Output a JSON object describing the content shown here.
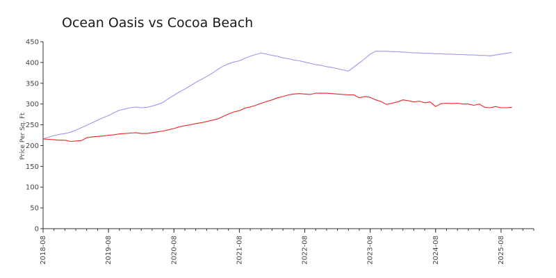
{
  "chart_data": {
    "type": "line",
    "title": "Ocean Oasis vs Cocoa Beach",
    "xlabel": "",
    "ylabel": "Price Per Sq. Ft",
    "ylim": [
      0,
      450
    ],
    "yticks": [
      0,
      50,
      100,
      150,
      200,
      250,
      300,
      350,
      400,
      450
    ],
    "xlim": [
      "2018-08",
      "2026-02"
    ],
    "xticks": [
      "2018-08",
      "2019-08",
      "2020-08",
      "2021-08",
      "2022-08",
      "2023-08",
      "2024-08",
      "2025-08"
    ],
    "grid": false,
    "series": [
      {
        "color": "#9999ee",
        "points": [
          [
            "2018-08",
            216
          ],
          [
            "2018-09",
            220
          ],
          [
            "2018-10",
            224
          ],
          [
            "2018-11",
            227
          ],
          [
            "2018-12",
            229
          ],
          [
            "2019-01",
            232
          ],
          [
            "2019-02",
            237
          ],
          [
            "2019-03",
            243
          ],
          [
            "2019-04",
            249
          ],
          [
            "2019-05",
            255
          ],
          [
            "2019-06",
            261
          ],
          [
            "2019-07",
            267
          ],
          [
            "2019-08",
            272
          ],
          [
            "2019-09",
            279
          ],
          [
            "2019-10",
            285
          ],
          [
            "2019-11",
            288
          ],
          [
            "2019-12",
            291
          ],
          [
            "2020-01",
            293
          ],
          [
            "2020-02",
            291
          ],
          [
            "2020-03",
            292
          ],
          [
            "2020-04",
            295
          ],
          [
            "2020-05",
            299
          ],
          [
            "2020-06",
            304
          ],
          [
            "2020-07",
            313
          ],
          [
            "2020-08",
            321
          ],
          [
            "2020-09",
            329
          ],
          [
            "2020-10",
            336
          ],
          [
            "2020-11",
            344
          ],
          [
            "2020-12",
            352
          ],
          [
            "2021-01",
            359
          ],
          [
            "2021-02",
            366
          ],
          [
            "2021-03",
            374
          ],
          [
            "2021-04",
            383
          ],
          [
            "2021-05",
            391
          ],
          [
            "2021-06",
            397
          ],
          [
            "2021-07",
            401
          ],
          [
            "2021-08",
            404
          ],
          [
            "2021-09",
            410
          ],
          [
            "2021-10",
            415
          ],
          [
            "2021-11",
            419
          ],
          [
            "2021-12",
            423
          ],
          [
            "2022-01",
            420
          ],
          [
            "2022-02",
            417
          ],
          [
            "2022-03",
            415
          ],
          [
            "2022-04",
            411
          ],
          [
            "2022-05",
            409
          ],
          [
            "2022-06",
            406
          ],
          [
            "2022-07",
            404
          ],
          [
            "2022-08",
            401
          ],
          [
            "2022-09",
            398
          ],
          [
            "2022-10",
            395
          ],
          [
            "2022-11",
            393
          ],
          [
            "2022-12",
            390
          ],
          [
            "2023-01",
            388
          ],
          [
            "2023-02",
            385
          ],
          [
            "2023-03",
            382
          ],
          [
            "2023-04",
            379
          ],
          [
            "2023-05",
            389
          ],
          [
            "2023-06",
            399
          ],
          [
            "2023-07",
            409
          ],
          [
            "2023-08",
            420
          ],
          [
            "2023-09",
            427
          ],
          [
            "2023-10",
            427
          ],
          [
            "2023-11",
            427
          ],
          [
            "2023-12",
            426
          ],
          [
            "2024-01",
            426
          ],
          [
            "2024-02",
            425
          ],
          [
            "2024-03",
            424
          ],
          [
            "2024-04",
            423
          ],
          [
            "2024-05",
            423
          ],
          [
            "2024-06",
            422
          ],
          [
            "2024-07",
            422
          ],
          [
            "2024-08",
            421
          ],
          [
            "2024-09",
            421
          ],
          [
            "2024-10",
            420
          ],
          [
            "2024-11",
            420
          ],
          [
            "2024-12",
            419
          ],
          [
            "2025-01",
            419
          ],
          [
            "2025-02",
            418
          ],
          [
            "2025-03",
            418
          ],
          [
            "2025-04",
            417
          ],
          [
            "2025-05",
            417
          ],
          [
            "2025-06",
            416
          ],
          [
            "2025-07",
            418
          ],
          [
            "2025-08",
            420
          ],
          [
            "2025-09",
            422
          ],
          [
            "2025-10",
            424
          ]
        ]
      },
      {
        "color": "#ee2222",
        "points": [
          [
            "2018-08",
            216
          ],
          [
            "2018-09",
            215
          ],
          [
            "2018-10",
            214
          ],
          [
            "2018-11",
            213
          ],
          [
            "2018-12",
            213
          ],
          [
            "2019-01",
            210
          ],
          [
            "2019-02",
            211
          ],
          [
            "2019-03",
            212
          ],
          [
            "2019-04",
            219
          ],
          [
            "2019-05",
            221
          ],
          [
            "2019-06",
            222
          ],
          [
            "2019-07",
            223
          ],
          [
            "2019-08",
            225
          ],
          [
            "2019-09",
            226
          ],
          [
            "2019-10",
            228
          ],
          [
            "2019-11",
            229
          ],
          [
            "2019-12",
            230
          ],
          [
            "2020-01",
            231
          ],
          [
            "2020-02",
            229
          ],
          [
            "2020-03",
            229
          ],
          [
            "2020-04",
            231
          ],
          [
            "2020-05",
            233
          ],
          [
            "2020-06",
            235
          ],
          [
            "2020-07",
            238
          ],
          [
            "2020-08",
            241
          ],
          [
            "2020-09",
            245
          ],
          [
            "2020-10",
            248
          ],
          [
            "2020-11",
            250
          ],
          [
            "2020-12",
            253
          ],
          [
            "2021-01",
            255
          ],
          [
            "2021-02",
            258
          ],
          [
            "2021-03",
            261
          ],
          [
            "2021-04",
            264
          ],
          [
            "2021-05",
            270
          ],
          [
            "2021-06",
            276
          ],
          [
            "2021-07",
            281
          ],
          [
            "2021-08",
            284
          ],
          [
            "2021-09",
            290
          ],
          [
            "2021-10",
            293
          ],
          [
            "2021-11",
            297
          ],
          [
            "2021-12",
            302
          ],
          [
            "2022-01",
            306
          ],
          [
            "2022-02",
            310
          ],
          [
            "2022-03",
            315
          ],
          [
            "2022-04",
            318
          ],
          [
            "2022-05",
            322
          ],
          [
            "2022-06",
            324
          ],
          [
            "2022-07",
            325
          ],
          [
            "2022-08",
            324
          ],
          [
            "2022-09",
            323
          ],
          [
            "2022-10",
            326
          ],
          [
            "2022-11",
            326
          ],
          [
            "2022-12",
            326
          ],
          [
            "2023-01",
            325
          ],
          [
            "2023-02",
            324
          ],
          [
            "2023-03",
            323
          ],
          [
            "2023-04",
            322
          ],
          [
            "2023-05",
            322
          ],
          [
            "2023-06",
            315
          ],
          [
            "2023-07",
            318
          ],
          [
            "2023-08",
            316
          ],
          [
            "2023-09",
            310
          ],
          [
            "2023-10",
            306
          ],
          [
            "2023-11",
            299
          ],
          [
            "2023-12",
            302
          ],
          [
            "2024-01",
            305
          ],
          [
            "2024-02",
            310
          ],
          [
            "2024-03",
            308
          ],
          [
            "2024-04",
            305
          ],
          [
            "2024-05",
            307
          ],
          [
            "2024-06",
            303
          ],
          [
            "2024-07",
            305
          ],
          [
            "2024-08",
            294
          ],
          [
            "2024-09",
            301
          ],
          [
            "2024-10",
            302
          ],
          [
            "2024-11",
            301
          ],
          [
            "2024-12",
            302
          ],
          [
            "2025-01",
            300
          ],
          [
            "2025-02",
            300
          ],
          [
            "2025-03",
            297
          ],
          [
            "2025-04",
            300
          ],
          [
            "2025-05",
            292
          ],
          [
            "2025-06",
            291
          ],
          [
            "2025-07",
            294
          ],
          [
            "2025-08",
            291
          ],
          [
            "2025-09",
            291
          ],
          [
            "2025-10",
            292
          ]
        ]
      }
    ]
  }
}
